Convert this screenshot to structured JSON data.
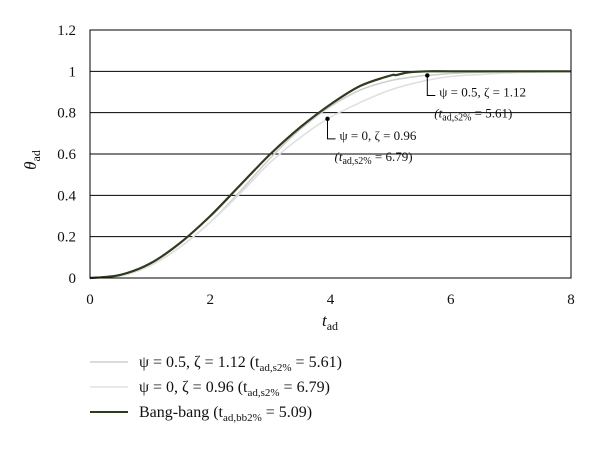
{
  "chart_data": {
    "type": "line",
    "xlabel": {
      "main": "t",
      "sub": "ad"
    },
    "ylabel": {
      "main": "θ",
      "sub": "ad"
    },
    "xlim": [
      0,
      8
    ],
    "ylim": [
      0,
      1.2
    ],
    "xticks": [
      "0",
      "2",
      "4",
      "6",
      "8"
    ],
    "yticks": [
      "0",
      "0.2",
      "0.4",
      "0.6",
      "0.8",
      "1",
      "1.2"
    ],
    "grid": "horizontal",
    "legend_position": "bottom",
    "series": [
      {
        "name": "ψ = 0.5, ζ = 1.12 (t_ad,s2% = 5.61)",
        "color": "#cfcfcf",
        "x": [
          0,
          0.5,
          1,
          1.5,
          2,
          2.5,
          3,
          3.5,
          4,
          4.5,
          5,
          5.5,
          5.61,
          6,
          6.5,
          7,
          7.5,
          8
        ],
        "y": [
          0,
          0.01,
          0.06,
          0.15,
          0.27,
          0.42,
          0.58,
          0.72,
          0.83,
          0.91,
          0.955,
          0.978,
          0.98,
          0.99,
          0.996,
          0.999,
          1.0,
          1.0
        ]
      },
      {
        "name": "ψ = 0, ζ = 0.96 (t_ad,s2% = 6.79)",
        "color": "#e0e0e0",
        "x": [
          0,
          0.5,
          1,
          1.5,
          2,
          2.5,
          3,
          3.5,
          3.95,
          4.5,
          5,
          5.5,
          6,
          6.5,
          6.79,
          7,
          7.5,
          8
        ],
        "y": [
          0,
          0.01,
          0.06,
          0.15,
          0.27,
          0.41,
          0.56,
          0.68,
          0.77,
          0.85,
          0.91,
          0.95,
          0.975,
          0.985,
          0.99,
          0.993,
          0.997,
          1.0
        ]
      },
      {
        "name": "Bang-bang (t_ad,bb2% = 5.09)",
        "color": "#2f3b1f",
        "x": [
          0,
          0.5,
          1,
          1.5,
          2,
          2.5,
          3,
          3.5,
          4,
          4.5,
          5,
          5.09,
          5.3,
          5.6,
          6,
          7,
          8
        ],
        "y": [
          0,
          0.015,
          0.07,
          0.17,
          0.3,
          0.45,
          0.6,
          0.73,
          0.84,
          0.93,
          0.98,
          0.982,
          0.995,
          1.0,
          1.0,
          1.0,
          1.0
        ]
      }
    ],
    "annotations": [
      {
        "marker_x": 5.61,
        "marker_y": 0.98,
        "line1": "ψ = 0.5, ζ = 1.12",
        "line2_pre": "(t",
        "line2_sub": "ad,s2%",
        "line2_post": " = 5.61)"
      },
      {
        "marker_x": 3.95,
        "marker_y": 0.77,
        "line1": "ψ = 0, ζ = 0.96",
        "line2_pre": "(t",
        "line2_sub": "ad,s2%",
        "line2_post": " = 6.79)"
      }
    ],
    "legend": [
      {
        "label": "ψ = 0.5, ζ = 1.12 (t",
        "sub": "ad,s2%",
        "post": " = 5.61)"
      },
      {
        "label": "ψ = 0, ζ = 0.96 (t",
        "sub": "ad,s2%",
        "post": " = 6.79)"
      },
      {
        "label": "Bang-bang (t",
        "sub": "ad,bb2%",
        "post": " = 5.09)"
      }
    ]
  }
}
